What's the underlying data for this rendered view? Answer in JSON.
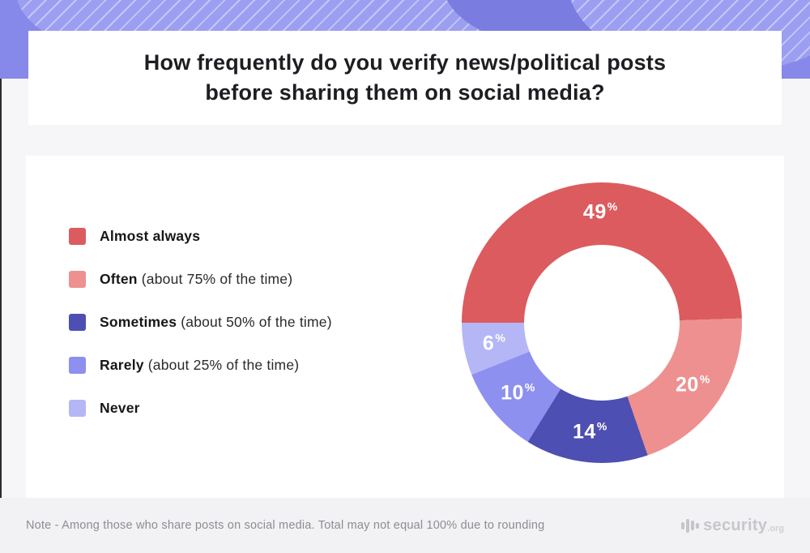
{
  "chart_data": {
    "type": "pie",
    "variant": "donut",
    "title": "How frequently do you verify news/political posts before sharing them on social media?",
    "title_lines": [
      "How frequently do you verify news/political posts",
      "before sharing them on social media?"
    ],
    "unit": "%",
    "start_angle_deg": 270,
    "direction": "clockwise",
    "inner_radius_ratio": 0.555,
    "legend_position": "left",
    "labels_on_slices": true,
    "series": [
      {
        "label": "Almost always",
        "detail": "",
        "value": 49,
        "color": "#dc5b5e"
      },
      {
        "label": "Often",
        "detail": "(about 75% of the time)",
        "value": 20,
        "color": "#ee9090"
      },
      {
        "label": "Sometimes",
        "detail": "(about 50% of the time)",
        "value": 14,
        "color": "#4d4fb2"
      },
      {
        "label": "Rarely",
        "detail": "(about 25% of the time)",
        "value": 10,
        "color": "#8d90ef"
      },
      {
        "label": "Never",
        "detail": "",
        "value": 6,
        "color": "#b5b6f6"
      }
    ]
  },
  "theme": {
    "header_band_color": "#8688ea",
    "card_color": "#ffffff",
    "footer_color": "#f2f2f5"
  },
  "footer": {
    "note": "Note - Among those who share posts on social media. Total may not equal 100% due to rounding",
    "brand": {
      "name": "security",
      "tld": ".org"
    }
  }
}
